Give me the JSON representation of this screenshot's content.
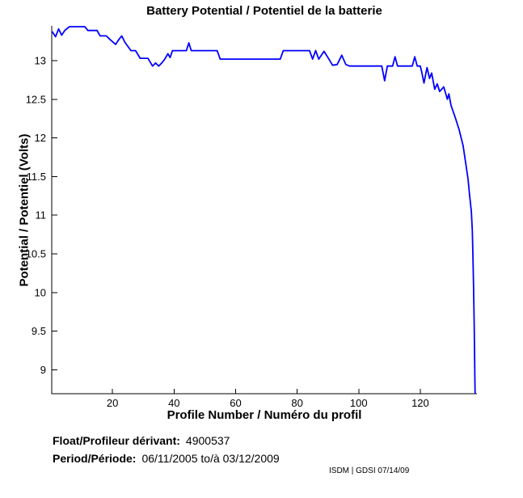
{
  "chart_data": {
    "type": "line",
    "title": "Battery Potential / Potentiel de la batterie",
    "xlabel": "Profile Number / Numéro du profil",
    "ylabel": "Potential / Potentiel (Volts)",
    "xlim": [
      0.26,
      138.4
    ],
    "ylim": [
      8.69,
      13.45
    ],
    "xticks": [
      20,
      40,
      60,
      80,
      100,
      120
    ],
    "yticks": [
      9,
      9.5,
      10,
      10.5,
      11,
      11.5,
      12,
      12.5,
      13
    ],
    "grid": false,
    "legend": "none",
    "line_color": "#0000FF",
    "axis_color": "#000000",
    "series": [
      {
        "name": "battery-potential",
        "x": [
          0.5,
          1.5,
          2.5,
          3.5,
          4.5,
          6,
          11,
          12,
          15,
          16,
          18,
          19,
          21,
          22,
          23,
          24,
          26,
          27.5,
          29,
          31.5,
          33,
          34,
          35,
          36,
          37,
          38,
          38.7,
          39.5,
          44,
          44.8,
          45.6,
          54,
          55,
          74.5,
          75.5,
          84,
          85,
          86,
          87,
          88.7,
          90,
          91.5,
          93,
          94.5,
          95.8,
          97,
          107.5,
          108.4,
          109.3,
          111,
          111.8,
          112.6,
          117.4,
          118.2,
          119,
          120,
          120.5,
          121.2,
          122.2,
          123,
          123.7,
          124.7,
          125.5,
          126.3,
          127.6,
          128.3,
          128.8,
          129.3,
          130,
          131.3,
          132.6,
          133.9,
          134.7,
          135.5,
          136,
          136.6,
          136.9,
          137.1,
          137.3,
          137.5,
          137.8
        ],
        "y": [
          13.37,
          13.31,
          13.41,
          13.33,
          13.39,
          13.44,
          13.44,
          13.39,
          13.39,
          13.32,
          13.32,
          13.28,
          13.21,
          13.27,
          13.32,
          13.24,
          13.13,
          13.13,
          13.03,
          13.03,
          12.93,
          12.97,
          12.93,
          12.97,
          13.02,
          13.09,
          13.04,
          13.13,
          13.13,
          13.23,
          13.13,
          13.13,
          13.02,
          13.02,
          13.13,
          13.13,
          13.02,
          13.13,
          13.02,
          13.12,
          13.04,
          12.94,
          12.95,
          13.07,
          12.95,
          12.93,
          12.93,
          12.74,
          12.93,
          12.93,
          13.05,
          12.93,
          12.93,
          13.05,
          12.93,
          12.93,
          12.85,
          12.71,
          12.91,
          12.77,
          12.84,
          12.63,
          12.7,
          12.6,
          12.66,
          12.57,
          12.5,
          12.57,
          12.42,
          12.27,
          12.11,
          11.9,
          11.69,
          11.47,
          11.26,
          11.05,
          10.8,
          10.5,
          10.1,
          9.6,
          8.7
        ]
      }
    ]
  },
  "annotations": {
    "float_label": "Float/Profileur dérivant:",
    "float_value": "4900537",
    "period_label": "Period/Période:",
    "period_value": "06/11/2005  to/à  03/12/2009",
    "credit": "ISDM | GDSI 07/14/09"
  }
}
